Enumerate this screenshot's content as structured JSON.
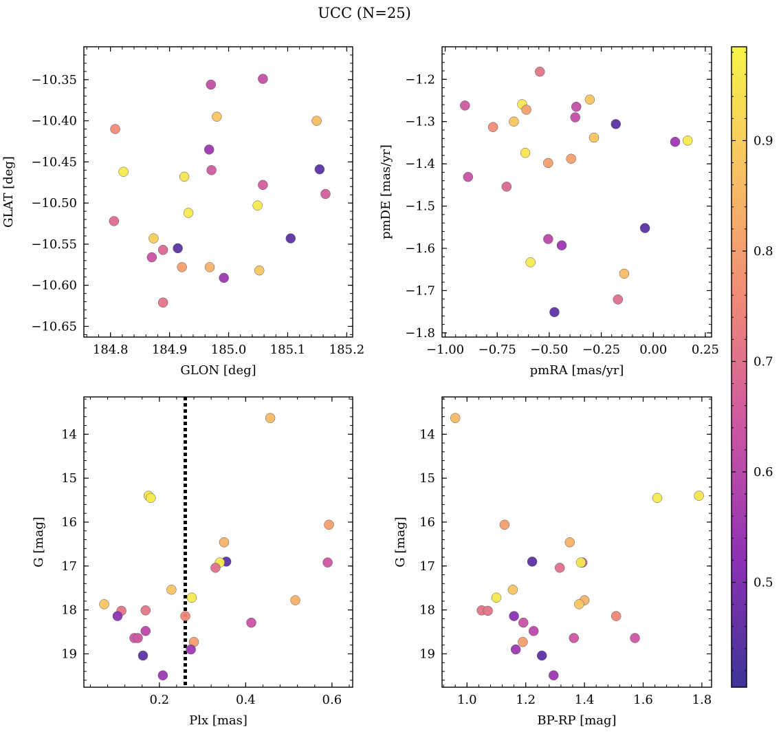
{
  "title": "UCC (N=25)",
  "colormap": {
    "name": "plasma",
    "stops": [
      "#3c3597",
      "#8e30b5",
      "#cb55a3",
      "#f08878",
      "#f8bf63",
      "#f6f54a"
    ],
    "range": [
      0.405,
      0.985
    ],
    "ticks": [
      0.5,
      0.6,
      0.7,
      0.8,
      0.9
    ],
    "tick_labels": [
      "0.5",
      "0.6",
      "0.7",
      "0.8",
      "0.9"
    ]
  },
  "chart_data": [
    {
      "type": "scatter",
      "panel": "top-left",
      "xlabel": "GLON [deg]",
      "ylabel": "GLAT [deg]",
      "xlim": [
        184.755,
        185.21
      ],
      "ylim": [
        -10.663,
        -10.31
      ],
      "y_inverted": false,
      "xticks": [
        184.8,
        184.9,
        185.0,
        185.1,
        185.2
      ],
      "xtick_labels": [
        "184.8",
        "184.9",
        "185.0",
        "185.1",
        "185.2"
      ],
      "yticks": [
        -10.35,
        -10.4,
        -10.45,
        -10.5,
        -10.55,
        -10.6,
        -10.65
      ],
      "ytick_labels": [
        "−10.35",
        "−10.40",
        "−10.45",
        "−10.50",
        "−10.55",
        "−10.60",
        "−10.65"
      ],
      "points": [
        {
          "x": 185.058,
          "y": -10.349,
          "c": 0.62
        },
        {
          "x": 184.97,
          "y": -10.356,
          "c": 0.62
        },
        {
          "x": 184.98,
          "y": -10.395,
          "c": 0.88
        },
        {
          "x": 185.149,
          "y": -10.4,
          "c": 0.86
        },
        {
          "x": 184.808,
          "y": -10.41,
          "c": 0.76
        },
        {
          "x": 184.967,
          "y": -10.435,
          "c": 0.55
        },
        {
          "x": 184.971,
          "y": -10.46,
          "c": 0.65
        },
        {
          "x": 185.154,
          "y": -10.459,
          "c": 0.45
        },
        {
          "x": 184.822,
          "y": -10.462,
          "c": 0.96
        },
        {
          "x": 184.925,
          "y": -10.468,
          "c": 0.95
        },
        {
          "x": 185.058,
          "y": -10.478,
          "c": 0.66
        },
        {
          "x": 185.164,
          "y": -10.489,
          "c": 0.66
        },
        {
          "x": 185.049,
          "y": -10.503,
          "c": 0.96
        },
        {
          "x": 184.932,
          "y": -10.512,
          "c": 0.96
        },
        {
          "x": 184.806,
          "y": -10.522,
          "c": 0.69
        },
        {
          "x": 184.873,
          "y": -10.543,
          "c": 0.9
        },
        {
          "x": 185.105,
          "y": -10.543,
          "c": 0.45
        },
        {
          "x": 184.914,
          "y": -10.555,
          "c": 0.45
        },
        {
          "x": 184.889,
          "y": -10.557,
          "c": 0.68
        },
        {
          "x": 184.87,
          "y": -10.566,
          "c": 0.63
        },
        {
          "x": 184.921,
          "y": -10.578,
          "c": 0.8
        },
        {
          "x": 184.968,
          "y": -10.578,
          "c": 0.84
        },
        {
          "x": 185.052,
          "y": -10.582,
          "c": 0.88
        },
        {
          "x": 184.992,
          "y": -10.591,
          "c": 0.55
        },
        {
          "x": 184.889,
          "y": -10.621,
          "c": 0.71
        }
      ]
    },
    {
      "type": "scatter",
      "panel": "top-right",
      "xlabel": "pmRA [mas/yr]",
      "ylabel": "pmDE [mas/yr]",
      "xlim": [
        -1.015,
        0.28
      ],
      "ylim": [
        -1.81,
        -1.123
      ],
      "y_inverted": false,
      "xticks": [
        -1.0,
        -0.75,
        -0.5,
        -0.25,
        0.0,
        0.25
      ],
      "xtick_labels": [
        "−1.00",
        "−0.75",
        "−0.50",
        "−0.25",
        "0.00",
        "0.25"
      ],
      "yticks": [
        -1.2,
        -1.3,
        -1.4,
        -1.5,
        -1.6,
        -1.7,
        -1.8
      ],
      "ytick_labels": [
        "−1.2",
        "−1.3",
        "−1.4",
        "−1.5",
        "−1.6",
        "−1.7",
        "−1.8"
      ],
      "points": [
        {
          "x": -0.545,
          "y": -1.182,
          "c": 0.71
        },
        {
          "x": -0.305,
          "y": -1.248,
          "c": 0.88
        },
        {
          "x": -0.905,
          "y": -1.262,
          "c": 0.65
        },
        {
          "x": -0.63,
          "y": -1.259,
          "c": 0.96
        },
        {
          "x": -0.37,
          "y": -1.265,
          "c": 0.62
        },
        {
          "x": -0.61,
          "y": -1.272,
          "c": 0.8
        },
        {
          "x": -0.375,
          "y": -1.29,
          "c": 0.62
        },
        {
          "x": -0.67,
          "y": -1.3,
          "c": 0.88
        },
        {
          "x": -0.18,
          "y": -1.306,
          "c": 0.45
        },
        {
          "x": -0.77,
          "y": -1.313,
          "c": 0.76
        },
        {
          "x": -0.285,
          "y": -1.338,
          "c": 0.88
        },
        {
          "x": 0.105,
          "y": -1.348,
          "c": 0.55
        },
        {
          "x": 0.165,
          "y": -1.345,
          "c": 0.96
        },
        {
          "x": -0.615,
          "y": -1.374,
          "c": 0.95
        },
        {
          "x": -0.395,
          "y": -1.388,
          "c": 0.8
        },
        {
          "x": -0.505,
          "y": -1.398,
          "c": 0.8
        },
        {
          "x": -0.89,
          "y": -1.431,
          "c": 0.63
        },
        {
          "x": -0.705,
          "y": -1.454,
          "c": 0.68
        },
        {
          "x": -0.04,
          "y": -1.552,
          "c": 0.45
        },
        {
          "x": -0.505,
          "y": -1.578,
          "c": 0.6
        },
        {
          "x": -0.44,
          "y": -1.593,
          "c": 0.55
        },
        {
          "x": -0.59,
          "y": -1.633,
          "c": 0.96
        },
        {
          "x": -0.14,
          "y": -1.66,
          "c": 0.86
        },
        {
          "x": -0.17,
          "y": -1.721,
          "c": 0.7
        },
        {
          "x": -0.475,
          "y": -1.751,
          "c": 0.45
        }
      ]
    },
    {
      "type": "scatter",
      "panel": "bottom-left",
      "xlabel": "Plx [mas]",
      "ylabel": "G [mag]",
      "xlim": [
        0.025,
        0.648
      ],
      "ylim": [
        19.76,
        13.15
      ],
      "y_inverted": true,
      "xticks": [
        0.2,
        0.4,
        0.6
      ],
      "xtick_labels": [
        "0.2",
        "0.4",
        "0.6"
      ],
      "yticks": [
        14,
        15,
        16,
        17,
        18,
        19
      ],
      "ytick_labels": [
        "14",
        "15",
        "16",
        "17",
        "18",
        "19"
      ],
      "vline": 0.26,
      "points": [
        {
          "x": 0.457,
          "y": 13.63,
          "c": 0.86
        },
        {
          "x": 0.175,
          "y": 15.4,
          "c": 0.95
        },
        {
          "x": 0.18,
          "y": 15.45,
          "c": 0.96
        },
        {
          "x": 0.593,
          "y": 16.06,
          "c": 0.8
        },
        {
          "x": 0.35,
          "y": 16.46,
          "c": 0.84
        },
        {
          "x": 0.355,
          "y": 16.9,
          "c": 0.45
        },
        {
          "x": 0.34,
          "y": 16.92,
          "c": 0.96
        },
        {
          "x": 0.59,
          "y": 16.92,
          "c": 0.64
        },
        {
          "x": 0.33,
          "y": 17.04,
          "c": 0.7
        },
        {
          "x": 0.228,
          "y": 17.54,
          "c": 0.88
        },
        {
          "x": 0.275,
          "y": 17.72,
          "c": 0.96
        },
        {
          "x": 0.515,
          "y": 17.78,
          "c": 0.84
        },
        {
          "x": 0.072,
          "y": 17.87,
          "c": 0.88
        },
        {
          "x": 0.112,
          "y": 18.02,
          "c": 0.71
        },
        {
          "x": 0.168,
          "y": 18.01,
          "c": 0.71
        },
        {
          "x": 0.103,
          "y": 18.14,
          "c": 0.52
        },
        {
          "x": 0.26,
          "y": 18.14,
          "c": 0.75
        },
        {
          "x": 0.413,
          "y": 18.29,
          "c": 0.63
        },
        {
          "x": 0.168,
          "y": 18.48,
          "c": 0.6
        },
        {
          "x": 0.142,
          "y": 18.64,
          "c": 0.64
        },
        {
          "x": 0.15,
          "y": 18.64,
          "c": 0.64
        },
        {
          "x": 0.28,
          "y": 18.73,
          "c": 0.8
        },
        {
          "x": 0.273,
          "y": 18.9,
          "c": 0.55
        },
        {
          "x": 0.162,
          "y": 19.04,
          "c": 0.45
        },
        {
          "x": 0.208,
          "y": 19.49,
          "c": 0.55
        }
      ]
    },
    {
      "type": "scatter",
      "panel": "bottom-right",
      "xlabel": "BP-RP [mag]",
      "ylabel": "G [mag]",
      "xlim": [
        0.915,
        1.833
      ],
      "ylim": [
        19.76,
        13.15
      ],
      "y_inverted": true,
      "xticks": [
        1.0,
        1.2,
        1.4,
        1.6,
        1.8
      ],
      "xtick_labels": [
        "1.0",
        "1.2",
        "1.4",
        "1.6",
        "1.8"
      ],
      "yticks": [
        14,
        15,
        16,
        17,
        18,
        19
      ],
      "ytick_labels": [
        "14",
        "15",
        "16",
        "17",
        "18",
        "19"
      ],
      "points": [
        {
          "x": 0.96,
          "y": 13.63,
          "c": 0.86
        },
        {
          "x": 1.79,
          "y": 15.4,
          "c": 0.95
        },
        {
          "x": 1.648,
          "y": 15.45,
          "c": 0.96
        },
        {
          "x": 1.128,
          "y": 16.06,
          "c": 0.8
        },
        {
          "x": 1.35,
          "y": 16.46,
          "c": 0.84
        },
        {
          "x": 1.222,
          "y": 16.9,
          "c": 0.45
        },
        {
          "x": 1.393,
          "y": 16.92,
          "c": 0.64
        },
        {
          "x": 1.388,
          "y": 16.92,
          "c": 0.96
        },
        {
          "x": 1.316,
          "y": 17.04,
          "c": 0.7
        },
        {
          "x": 1.156,
          "y": 17.54,
          "c": 0.88
        },
        {
          "x": 1.1,
          "y": 17.72,
          "c": 0.96
        },
        {
          "x": 1.4,
          "y": 17.78,
          "c": 0.84
        },
        {
          "x": 1.382,
          "y": 17.87,
          "c": 0.88
        },
        {
          "x": 1.05,
          "y": 18.01,
          "c": 0.71
        },
        {
          "x": 1.071,
          "y": 18.02,
          "c": 0.71
        },
        {
          "x": 1.508,
          "y": 18.14,
          "c": 0.75
        },
        {
          "x": 1.16,
          "y": 18.14,
          "c": 0.52
        },
        {
          "x": 1.192,
          "y": 18.29,
          "c": 0.63
        },
        {
          "x": 1.227,
          "y": 18.48,
          "c": 0.6
        },
        {
          "x": 1.364,
          "y": 18.64,
          "c": 0.64
        },
        {
          "x": 1.572,
          "y": 18.64,
          "c": 0.64
        },
        {
          "x": 1.19,
          "y": 18.73,
          "c": 0.8
        },
        {
          "x": 1.166,
          "y": 18.9,
          "c": 0.55
        },
        {
          "x": 1.255,
          "y": 19.04,
          "c": 0.45
        },
        {
          "x": 1.295,
          "y": 19.49,
          "c": 0.55
        }
      ]
    }
  ]
}
